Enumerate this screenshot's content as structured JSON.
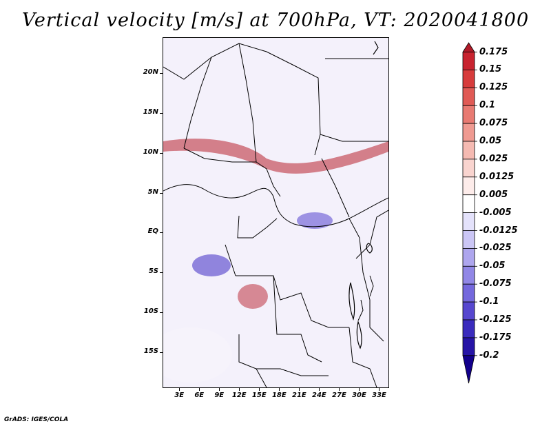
{
  "title": "Vertical velocity [m/s] at 700hPa, VT: 2020041800",
  "map": {
    "lat_labels": [
      "20N",
      "15N",
      "10N",
      "5N",
      "EQ",
      "5S",
      "10S",
      "15S"
    ],
    "lat_values": [
      20,
      15,
      10,
      5,
      0,
      -5,
      -10,
      -15
    ],
    "lon_labels": [
      "3E",
      "6E",
      "9E",
      "12E",
      "15E",
      "18E",
      "21E",
      "24E",
      "27E",
      "30E",
      "33E"
    ],
    "lon_values": [
      3,
      6,
      9,
      12,
      15,
      18,
      21,
      24,
      27,
      30,
      33
    ],
    "lon_range": [
      0.5,
      34.5
    ],
    "lat_range": [
      -19.5,
      24.5
    ]
  },
  "colorbar": {
    "labels": [
      "0.175",
      "0.15",
      "0.125",
      "0.1",
      "0.075",
      "0.05",
      "0.025",
      "0.0125",
      "0.005",
      "-0.005",
      "-0.0125",
      "-0.025",
      "-0.05",
      "-0.075",
      "-0.1",
      "-0.125",
      "-0.175",
      "-0.2"
    ],
    "colors": [
      "#b01a28",
      "#c8232f",
      "#d73c3c",
      "#e05a55",
      "#e87a72",
      "#ef9a91",
      "#f5bab2",
      "#f9d4cf",
      "#fdecea",
      "#ffffff",
      "#e4e2fb",
      "#cbc6f5",
      "#aea6ee",
      "#9187e6",
      "#7468dd",
      "#5747cf",
      "#3a2bbd",
      "#2614a6",
      "#12008c"
    ]
  },
  "footer": "GrADS: IGES/COLA"
}
